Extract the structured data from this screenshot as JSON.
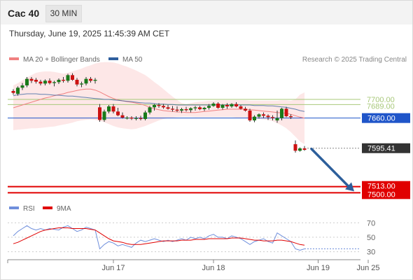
{
  "header": {
    "symbol": "Cac 40",
    "interval": "30 MIN"
  },
  "timestamp": "Thursday, June 19, 2025 11:45:39 AM CET",
  "legend": {
    "ma20": "MA 20 + Bollinger Bands",
    "ma50": "MA 50",
    "credit": "Research © 2025 Trading Central",
    "rsi": "RSI",
    "ma9": "9MA"
  },
  "colors": {
    "up": "#1a7a1a",
    "down": "#cc1111",
    "band": "#fde3e3",
    "ma20": "#f08080",
    "ma50": "#2f5f9e",
    "support": "#e00000",
    "pivot": "#1f55c9",
    "resist": "#a8c87a",
    "arrow": "#2d5f9b",
    "rsi": "#6f8fdc",
    "rsi_ma": "#e00000"
  },
  "chart_data": [
    {
      "type": "candlestick",
      "title": "Cac 40",
      "interval": "30 MIN",
      "y_range": [
        7490,
        7745
      ],
      "x_ticks": [
        "Jun 17",
        "Jun 18",
        "Jun 19",
        "Jun 25"
      ],
      "x_tick_index": [
        22,
        44,
        67,
        78
      ],
      "last_price": 7595.41,
      "levels": [
        {
          "label": "7700.00",
          "value": 7700,
          "role": "resistance"
        },
        {
          "label": "7689.00",
          "value": 7689,
          "role": "resistance"
        },
        {
          "label": "7660.00",
          "value": 7660,
          "role": "pivot"
        },
        {
          "label": "7595.41",
          "value": 7595.41,
          "role": "last"
        },
        {
          "label": "7513.00",
          "value": 7513,
          "role": "support"
        },
        {
          "label": "7500.00",
          "value": 7500,
          "role": "support"
        }
      ],
      "candles": [
        [
          7718,
          7722,
          7710,
          7714
        ],
        [
          7712,
          7728,
          7708,
          7725
        ],
        [
          7725,
          7735,
          7720,
          7730
        ],
        [
          7730,
          7748,
          7726,
          7744
        ],
        [
          7744,
          7748,
          7735,
          7740
        ],
        [
          7742,
          7746,
          7734,
          7738
        ],
        [
          7738,
          7742,
          7730,
          7734
        ],
        [
          7734,
          7743,
          7730,
          7740
        ],
        [
          7740,
          7745,
          7732,
          7735
        ],
        [
          7735,
          7740,
          7728,
          7737
        ],
        [
          7737,
          7745,
          7733,
          7742
        ],
        [
          7742,
          7748,
          7736,
          7740
        ],
        [
          7740,
          7755,
          7736,
          7752
        ],
        [
          7752,
          7756,
          7740,
          7742
        ],
        [
          7742,
          7746,
          7728,
          7732
        ],
        [
          7732,
          7738,
          7726,
          7734
        ],
        [
          7734,
          7748,
          7730,
          7744
        ],
        [
          7744,
          7748,
          7736,
          7740
        ],
        [
          7740,
          7746,
          7734,
          7742
        ],
        [
          7683,
          7690,
          7652,
          7656
        ],
        [
          7656,
          7678,
          7652,
          7674
        ],
        [
          7674,
          7688,
          7670,
          7685
        ],
        [
          7685,
          7690,
          7670,
          7674
        ],
        [
          7674,
          7682,
          7664,
          7666
        ],
        [
          7666,
          7672,
          7659,
          7661
        ],
        [
          7661,
          7664,
          7657,
          7661
        ],
        [
          7661,
          7664,
          7656,
          7659
        ],
        [
          7659,
          7664,
          7655,
          7660
        ],
        [
          7660,
          7665,
          7655,
          7658
        ],
        [
          7658,
          7676,
          7655,
          7672
        ],
        [
          7672,
          7686,
          7668,
          7683
        ],
        [
          7683,
          7690,
          7676,
          7688
        ],
        [
          7688,
          7692,
          7682,
          7686
        ],
        [
          7686,
          7690,
          7680,
          7683
        ],
        [
          7683,
          7688,
          7678,
          7680
        ],
        [
          7680,
          7686,
          7674,
          7678
        ],
        [
          7678,
          7685,
          7673,
          7676
        ],
        [
          7676,
          7682,
          7671,
          7679
        ],
        [
          7679,
          7684,
          7674,
          7677
        ],
        [
          7677,
          7683,
          7672,
          7681
        ],
        [
          7681,
          7686,
          7676,
          7683
        ],
        [
          7683,
          7686,
          7677,
          7679
        ],
        [
          7679,
          7684,
          7675,
          7682
        ],
        [
          7682,
          7690,
          7678,
          7686
        ],
        [
          7686,
          7694,
          7684,
          7691
        ],
        [
          7691,
          7694,
          7680,
          7682
        ],
        [
          7682,
          7690,
          7678,
          7688
        ],
        [
          7688,
          7692,
          7680,
          7685
        ],
        [
          7685,
          7692,
          7682,
          7690
        ],
        [
          7690,
          7694,
          7683,
          7685
        ],
        [
          7685,
          7688,
          7678,
          7680
        ],
        [
          7680,
          7684,
          7674,
          7676
        ],
        [
          7676,
          7680,
          7652,
          7655
        ],
        [
          7655,
          7666,
          7651,
          7663
        ],
        [
          7663,
          7670,
          7659,
          7668
        ],
        [
          7668,
          7672,
          7660,
          7665
        ],
        [
          7665,
          7668,
          7656,
          7662
        ],
        [
          7662,
          7666,
          7655,
          7660
        ],
        [
          7655,
          7676,
          7650,
          7660
        ],
        [
          7660,
          7682,
          7655,
          7680
        ],
        [
          7680,
          7684,
          7662,
          7664
        ],
        [
          7664,
          7668,
          7658,
          7662
        ],
        [
          7604,
          7612,
          7586,
          7590
        ],
        [
          7590,
          7597,
          7588,
          7595
        ],
        [
          7595,
          7600,
          7590,
          7592
        ]
      ],
      "ma20": [
        7682,
        7685,
        7688,
        7691,
        7694,
        7697,
        7700,
        7703,
        7705,
        7708,
        7710,
        7712,
        7715,
        7717,
        7719,
        7721,
        7722,
        7722,
        7720,
        7716,
        7711,
        7706,
        7702,
        7699,
        7697,
        7695,
        7694,
        7692,
        7690,
        7687,
        7683,
        7680,
        7678,
        7676,
        7675,
        7674,
        7673,
        7673,
        7672,
        7672,
        7672,
        7673,
        7674,
        7675,
        7676,
        7677,
        7678,
        7679,
        7679,
        7679,
        7679,
        7679,
        7678,
        7677,
        7676,
        7675,
        7674,
        7673,
        7672,
        7671,
        7670,
        7668,
        7665,
        7662,
        7660
      ],
      "ma50": [
        7708,
        7710,
        7711,
        7712,
        7712,
        7712,
        7711,
        7711,
        7710,
        7709,
        7709,
        7708,
        7707,
        7707,
        7706,
        7705,
        7704,
        7703,
        7702,
        7701,
        7700,
        7700,
        7699,
        7698,
        7697,
        7696,
        7695,
        7694,
        7693,
        7692,
        7692,
        7691,
        7690,
        7690,
        7689,
        7689,
        7688,
        7688,
        7688,
        7688,
        7688,
        7688,
        7688,
        7688,
        7688,
        7688,
        7688,
        7688,
        7688,
        7688,
        7688,
        7688,
        7688,
        7687,
        7687,
        7687,
        7686,
        7686,
        7685,
        7684,
        7683,
        7681,
        7679,
        7676,
        7674
      ],
      "bb_upper": [
        7730,
        7735,
        7741,
        7747,
        7752,
        7757,
        7759,
        7760,
        7760,
        7759,
        7757,
        7755,
        7757,
        7760,
        7763,
        7766,
        7770,
        7773,
        7777,
        7779,
        7780,
        7780,
        7779,
        7777,
        7773,
        7770,
        7766,
        7762,
        7757,
        7752,
        7745,
        7737,
        7730,
        7722,
        7714,
        7706,
        7699,
        7692,
        7690,
        7692,
        7694,
        7695,
        7696,
        7697,
        7697,
        7698,
        7698,
        7698,
        7698,
        7698,
        7698,
        7698,
        7697,
        7697,
        7697,
        7697,
        7697,
        7697,
        7697,
        7698,
        7698,
        7697,
        7700,
        7710,
        7715
      ],
      "bb_lower": [
        7634,
        7635,
        7636,
        7637,
        7638,
        7638,
        7639,
        7640,
        7641,
        7642,
        7644,
        7646,
        7648,
        7650,
        7653,
        7655,
        7656,
        7657,
        7656,
        7654,
        7651,
        7647,
        7643,
        7640,
        7638,
        7637,
        7636,
        7637,
        7640,
        7643,
        7647,
        7651,
        7655,
        7658,
        7660,
        7661,
        7662,
        7663,
        7663,
        7663,
        7662,
        7662,
        7662,
        7662,
        7662,
        7662,
        7662,
        7662,
        7662,
        7661,
        7661,
        7661,
        7660,
        7659,
        7658,
        7657,
        7656,
        7653,
        7649,
        7644,
        7638,
        7630,
        7620,
        7610,
        7604
      ]
    },
    {
      "type": "line",
      "title": "RSI",
      "y_ticks": [
        70,
        50,
        30
      ],
      "y_range": [
        18,
        78
      ],
      "series": [
        {
          "name": "RSI",
          "values": [
            52,
            58,
            62,
            66,
            62,
            60,
            62,
            60,
            62,
            61,
            60,
            64,
            66,
            62,
            58,
            60,
            64,
            62,
            60,
            34,
            40,
            44,
            42,
            38,
            40,
            38,
            36,
            42,
            46,
            44,
            46,
            48,
            46,
            44,
            46,
            44,
            46,
            48,
            46,
            50,
            48,
            50,
            48,
            52,
            54,
            50,
            50,
            48,
            52,
            50,
            48,
            44,
            40,
            44,
            46,
            48,
            44,
            42,
            56,
            52,
            48,
            44,
            34,
            32,
            34
          ]
        },
        {
          "name": "9MA",
          "values": [
            41,
            43,
            46,
            49,
            52,
            55,
            58,
            60,
            61,
            62,
            63,
            63,
            63,
            62,
            62,
            62,
            62,
            61,
            60,
            56,
            52,
            48,
            45,
            44,
            43,
            41,
            40,
            40,
            40,
            41,
            42,
            43,
            44,
            45,
            45,
            45,
            45,
            46,
            46,
            46,
            47,
            47,
            47,
            48,
            48,
            48,
            48,
            48,
            49,
            49,
            49,
            48,
            47,
            46,
            46,
            45,
            45,
            45,
            46,
            46,
            45,
            44,
            42,
            40,
            39
          ]
        }
      ]
    }
  ]
}
